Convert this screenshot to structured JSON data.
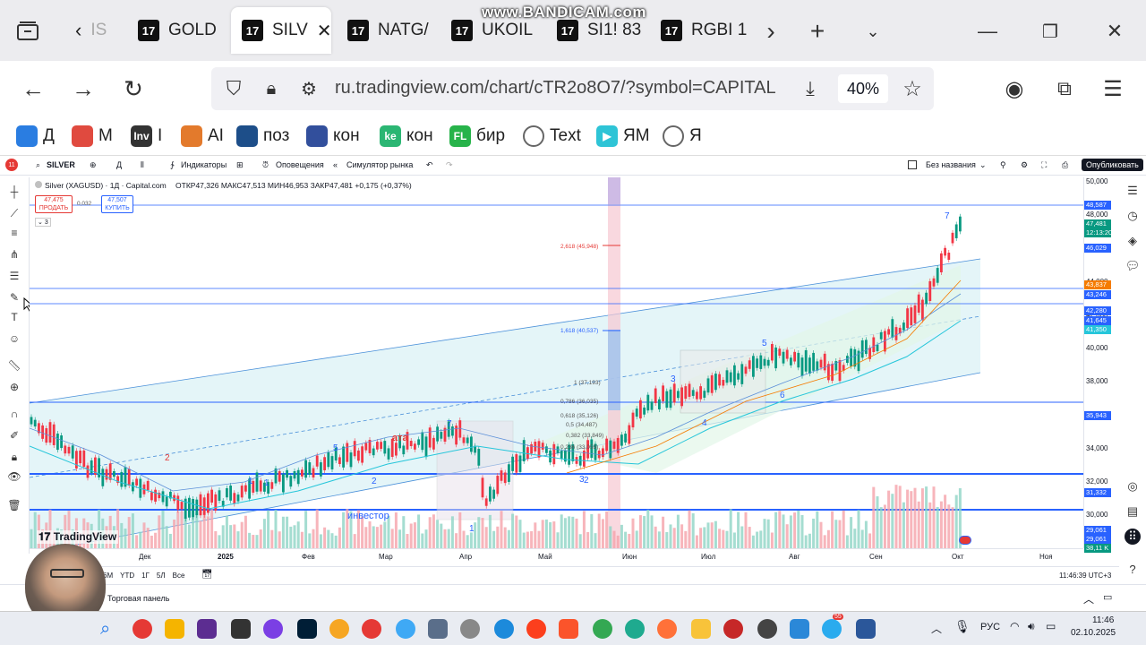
{
  "watermark": "www.BANDICAM.com",
  "tabs": [
    {
      "label": "IS",
      "active": false
    },
    {
      "label": "GOLD",
      "active": false
    },
    {
      "label": "SILV",
      "active": true
    },
    {
      "label": "NATG/",
      "active": false
    },
    {
      "label": "UKOIL",
      "active": false
    },
    {
      "label": "SI1! 83",
      "active": false
    },
    {
      "label": "RGBI 1",
      "active": false
    }
  ],
  "navbar": {
    "url": "ru.tradingview.com/chart/cTR2o8O7/?symbol=CAPITAL",
    "zoom": "40%"
  },
  "bookmarks": [
    {
      "label": "Д",
      "color": "#2a7de1"
    },
    {
      "label": "М",
      "color": "#e04a3f"
    },
    {
      "label": "I",
      "color": "#333333"
    },
    {
      "label": "AI",
      "color": "#e37a2c"
    },
    {
      "label": "поз",
      "color": "#1d4e89"
    },
    {
      "label": "кон",
      "color": "#324f9c"
    },
    {
      "label": "кон",
      "color": "#2bb673"
    },
    {
      "label": "бир",
      "color": "#27b34a"
    },
    {
      "label": "Text",
      "color": "#666666"
    },
    {
      "label": "ЯМ",
      "color": "#2ec4d6"
    },
    {
      "label": "Я",
      "color": "#666666"
    }
  ],
  "tv_header": {
    "symbol": "SILVER",
    "interval": "Д",
    "indicators": "Индикаторы",
    "alerts": "Оповещения",
    "replay": "Симулятор рынка",
    "layout_name": "Без названия",
    "publish": "Опубликовать",
    "notif_count": "11"
  },
  "legend": {
    "title": "Silver (XAGUSD) · 1Д · Capital.com",
    "ohlc": "ОТКР47,326  МАКС47,513  МИН46,953  ЗАКР47,481  +0,175 (+0,37%)",
    "sell_price": "47,475",
    "sell_label": "ПРОДАТЬ",
    "spread": "0,032",
    "buy_price": "47,507",
    "buy_label": "КУПИТЬ",
    "collapsed_count": "3"
  },
  "fib_labels": [
    "2,618 (45,948)",
    "1,618 (40,537)",
    "1 (37,193)",
    "0,786 (36,035)",
    "0,618 (35,126)",
    "0,5 (34,487)",
    "0,382 (33,849)",
    "0,236 (33,059)"
  ],
  "wave_labels": [
    "7",
    "5",
    "3",
    "4",
    "6",
    "2",
    "1",
    "7",
    "5",
    "3",
    "2",
    "1",
    "2",
    "1"
  ],
  "drawing_labels": [
    "ата",
    "инвестор"
  ],
  "y_axis": [
    "50,000",
    "48,000",
    "46,000",
    "44,000",
    "42,000",
    "40,000",
    "38,000",
    "36,000",
    "34,000",
    "32,000",
    "30,000",
    "28,000"
  ],
  "y_badges": [
    {
      "value": "48,587",
      "color": "#2962ff"
    },
    {
      "value": "47,481",
      "color": "#089981"
    },
    {
      "value": "12:13:20",
      "color": "#089981"
    },
    {
      "value": "46,029",
      "color": "#2962ff"
    },
    {
      "value": "43,837",
      "color": "#f57c00"
    },
    {
      "value": "43,246",
      "color": "#2962ff"
    },
    {
      "value": "42,280",
      "color": "#2962ff"
    },
    {
      "value": "41,645",
      "color": "#2962ff"
    },
    {
      "value": "41,350",
      "color": "#26c6da"
    },
    {
      "value": "35,943",
      "color": "#2962ff"
    },
    {
      "value": "31,332",
      "color": "#2962ff"
    },
    {
      "value": "29,061",
      "color": "#2962ff"
    },
    {
      "value": "29,061",
      "color": "#2962ff"
    },
    {
      "value": "38,11 K",
      "color": "#089981"
    }
  ],
  "x_axis": [
    "Ноя",
    "Дек",
    "2025",
    "Фев",
    "Мар",
    "Апр",
    "Май",
    "Июн",
    "Июл",
    "Авг",
    "Сен",
    "Окт",
    "Ноя"
  ],
  "bottom_bar": {
    "ranges": [
      "1Д",
      "5Д",
      "1М",
      "3М",
      "6М",
      "YTD",
      "1Г",
      "5Л",
      "Все"
    ],
    "time": "11:46:39 UTC+3"
  },
  "trade_panel": "Торговая панель",
  "tv_brand": "TradingView",
  "taskbar": {
    "lang": "РУС",
    "time": "11:46",
    "date": "02.10.2025",
    "telegram_badge": "55"
  }
}
